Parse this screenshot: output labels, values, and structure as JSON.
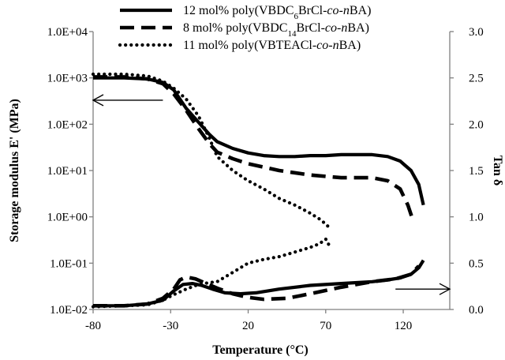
{
  "chart_data": {
    "type": "line",
    "xlabel": "Temperature (°C)",
    "ylabel_left": "Storage modulus E' (MPa)",
    "ylabel_right": "Tan δ",
    "x_ticks": [
      "-80",
      "-30",
      "20",
      "70",
      "120"
    ],
    "x_range": [
      -80,
      150
    ],
    "left_y_scale": "log",
    "left_y_ticks": [
      "1.0E-02",
      "1.0E-01",
      "1.0E+00",
      "1.0E+01",
      "1.0E+02",
      "1.0E+03",
      "1.0E+04"
    ],
    "left_y_range": [
      0.01,
      10000
    ],
    "right_y_ticks": [
      "0.0",
      "0.5",
      "1.0",
      "1.5",
      "2.0",
      "2.5",
      "3.0"
    ],
    "right_y_range": [
      0,
      3
    ],
    "grid": false,
    "legend_position": "top-center",
    "legend": [
      {
        "pre": "12 mol% poly(VBDC",
        "sub": "6",
        "mid": "BrCl-",
        "it1": "co",
        "dash": "-",
        "it2": "n",
        "post": "BA)",
        "style": "solid"
      },
      {
        "pre": "8 mol% poly(VBDC",
        "sub": "14",
        "mid": "BrCl-",
        "it1": "co",
        "dash": "-",
        "it2": "n",
        "post": "BA)",
        "style": "dashed"
      },
      {
        "pre": "11 mol% poly(VBTEACl-",
        "sub": "",
        "mid": "",
        "it1": "co",
        "dash": "-",
        "it2": "n",
        "post": "BA)",
        "style": "dotted"
      }
    ],
    "series": [
      {
        "style": "solid",
        "axis": "left",
        "x": [
          -80,
          -60,
          -45,
          -35,
          -28,
          -20,
          -12,
          -5,
          0,
          10,
          20,
          30,
          40,
          50,
          60,
          70,
          80,
          90,
          100,
          110,
          118,
          125,
          130,
          133
        ],
        "y": [
          1000,
          1000,
          950,
          800,
          550,
          220,
          110,
          60,
          42,
          30,
          24,
          21,
          20,
          20,
          21,
          21,
          22,
          22,
          22,
          20,
          16,
          10,
          5,
          1.8
        ]
      },
      {
        "style": "dashed",
        "axis": "left",
        "x": [
          -80,
          -60,
          -45,
          -35,
          -28,
          -20,
          -12,
          -5,
          0,
          10,
          20,
          40,
          60,
          80,
          100,
          110,
          118,
          123,
          126
        ],
        "y": [
          1050,
          1050,
          950,
          750,
          450,
          200,
          80,
          38,
          25,
          18,
          14,
          10,
          8,
          7,
          7,
          6,
          4,
          1.8,
          0.9
        ]
      },
      {
        "style": "dotted",
        "axis": "left",
        "x": [
          -80,
          -60,
          -45,
          -35,
          -28,
          -20,
          -12,
          -5,
          0,
          10,
          20,
          30,
          40,
          50,
          60,
          66,
          70,
          72
        ],
        "y": [
          1200,
          1200,
          1100,
          850,
          600,
          350,
          150,
          50,
          20,
          10,
          6,
          4,
          2.5,
          1.8,
          1.2,
          0.9,
          0.7,
          0.6
        ]
      },
      {
        "style": "solid",
        "axis": "right",
        "x": [
          -80,
          -60,
          -45,
          -35,
          -28,
          -22,
          -16,
          -10,
          -3,
          5,
          15,
          25,
          40,
          60,
          80,
          100,
          110,
          118,
          125,
          130,
          133
        ],
        "y": [
          0.04,
          0.04,
          0.06,
          0.1,
          0.2,
          0.27,
          0.28,
          0.26,
          0.22,
          0.18,
          0.17,
          0.18,
          0.22,
          0.26,
          0.28,
          0.3,
          0.32,
          0.34,
          0.38,
          0.45,
          0.53
        ]
      },
      {
        "style": "dashed",
        "axis": "right",
        "x": [
          -80,
          -60,
          -45,
          -35,
          -28,
          -24,
          -20,
          -14,
          -7,
          0,
          10,
          20,
          30,
          45,
          60,
          80,
          100,
          115,
          125,
          130
        ],
        "y": [
          0.04,
          0.04,
          0.06,
          0.12,
          0.22,
          0.32,
          0.35,
          0.33,
          0.28,
          0.23,
          0.17,
          0.13,
          0.11,
          0.12,
          0.17,
          0.24,
          0.3,
          0.33,
          0.38,
          0.47
        ]
      },
      {
        "style": "dotted",
        "axis": "right",
        "x": [
          -80,
          -60,
          -45,
          -35,
          -28,
          -20,
          -12,
          -5,
          0,
          10,
          20,
          30,
          40,
          50,
          60,
          66,
          70,
          72
        ],
        "y": [
          0.03,
          0.04,
          0.05,
          0.1,
          0.16,
          0.22,
          0.27,
          0.29,
          0.3,
          0.4,
          0.5,
          0.54,
          0.57,
          0.62,
          0.67,
          0.71,
          0.76,
          0.7
        ]
      }
    ],
    "arrows": [
      {
        "points_to": "left-axis",
        "x": [
          -35,
          -80
        ],
        "y": [
          330,
          330
        ]
      },
      {
        "points_to": "right-axis",
        "x": [
          115,
          150
        ],
        "y": [
          0.22,
          0.22
        ]
      }
    ]
  }
}
